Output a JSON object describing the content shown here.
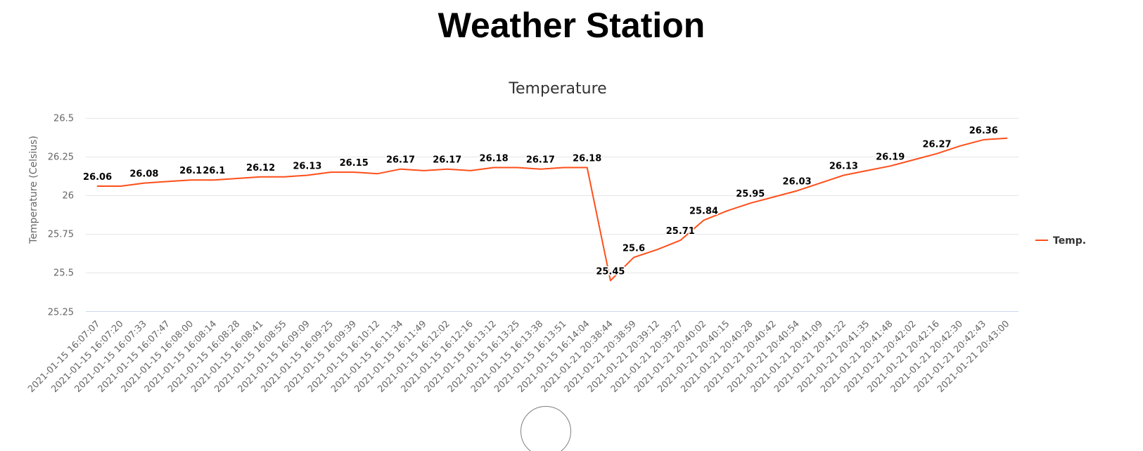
{
  "page": {
    "title": "Weather Station"
  },
  "chart_data": {
    "type": "line",
    "title": "Temperature",
    "xlabel": "",
    "ylabel": "Temperature (Celsius)",
    "ylim": [
      25.25,
      26.5
    ],
    "yticks": [
      "25.25",
      "25.5",
      "25.75",
      "26",
      "26.25",
      "26.5"
    ],
    "grid": true,
    "legend_position": "right",
    "categories": [
      "2021-01-15 16:07:07",
      "2021-01-15 16:07:20",
      "2021-01-15 16:07:33",
      "2021-01-15 16:07:47",
      "2021-01-15 16:08:00",
      "2021-01-15 16:08:14",
      "2021-01-15 16:08:28",
      "2021-01-15 16:08:41",
      "2021-01-15 16:08:55",
      "2021-01-15 16:09:09",
      "2021-01-15 16:09:25",
      "2021-01-15 16:09:39",
      "2021-01-15 16:10:12",
      "2021-01-15 16:11:34",
      "2021-01-15 16:11:49",
      "2021-01-15 16:12:02",
      "2021-01-15 16:12:16",
      "2021-01-15 16:13:12",
      "2021-01-15 16:13:25",
      "2021-01-15 16:13:38",
      "2021-01-15 16:13:51",
      "2021-01-15 16:14:04",
      "2021-01-21 20:38:44",
      "2021-01-21 20:38:59",
      "2021-01-21 20:39:12",
      "2021-01-21 20:39:27",
      "2021-01-21 20:40:02",
      "2021-01-21 20:40:15",
      "2021-01-21 20:40:28",
      "2021-01-21 20:40:42",
      "2021-01-21 20:40:54",
      "2021-01-21 20:41:09",
      "2021-01-21 20:41:22",
      "2021-01-21 20:41:35",
      "2021-01-21 20:41:48",
      "2021-01-21 20:42:02",
      "2021-01-21 20:42:16",
      "2021-01-21 20:42:30",
      "2021-01-21 20:42:43",
      "2021-01-21 20:43:00"
    ],
    "series": [
      {
        "name": "Temp.",
        "color": "#ff4f1a",
        "values": [
          26.06,
          26.06,
          26.08,
          26.09,
          26.1,
          26.1,
          26.11,
          26.12,
          26.12,
          26.13,
          26.15,
          26.15,
          26.14,
          26.17,
          26.16,
          26.17,
          26.16,
          26.18,
          26.18,
          26.17,
          26.18,
          26.18,
          25.45,
          25.6,
          25.65,
          25.71,
          25.84,
          25.9,
          25.95,
          25.99,
          26.03,
          26.08,
          26.13,
          26.16,
          26.19,
          26.23,
          26.27,
          26.32,
          26.36,
          26.37
        ],
        "labels": [
          "26.06",
          "",
          "26.08",
          "",
          "26.1",
          "26.1",
          "",
          "26.12",
          "",
          "26.13",
          "",
          "26.15",
          "",
          "26.17",
          "",
          "26.17",
          "",
          "26.18",
          "",
          "26.17",
          "",
          "26.18",
          "25.45",
          "25.6",
          "",
          "25.71",
          "25.84",
          "",
          "25.95",
          "",
          "26.03",
          "",
          "26.13",
          "",
          "26.19",
          "",
          "26.27",
          "",
          "26.36",
          ""
        ]
      }
    ]
  }
}
